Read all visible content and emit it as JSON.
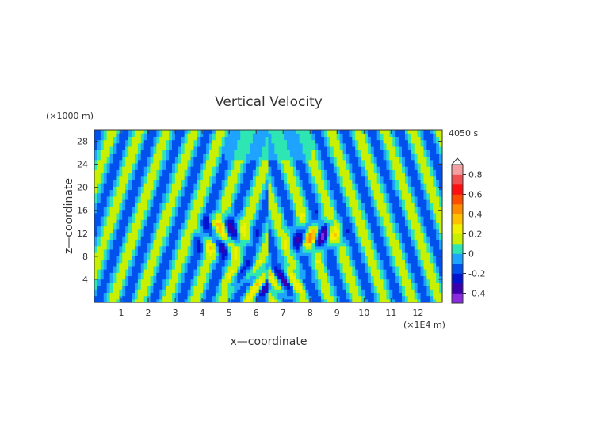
{
  "chart_data": {
    "type": "heatmap",
    "title": "Vertical Velocity",
    "time_label": "4050 s",
    "xlabel": "x—coordinate",
    "ylabel": "z—coordinate",
    "x_unit": "(×1E4 m)",
    "y_unit": "(×1000 m)",
    "xlim": [
      0,
      12.9
    ],
    "ylim": [
      0,
      30
    ],
    "x_ticks": [
      1,
      2,
      3,
      4,
      5,
      6,
      7,
      8,
      9,
      10,
      11,
      12
    ],
    "y_ticks": [
      4,
      8,
      12,
      16,
      20,
      24,
      28
    ],
    "colorbar": {
      "levels": [
        -0.5,
        -0.4,
        -0.3,
        -0.2,
        -0.1,
        0,
        0.1,
        0.2,
        0.3,
        0.4,
        0.5,
        0.6,
        0.7,
        0.8,
        0.9
      ],
      "labels": [
        "-0.4",
        "-0.2",
        "0",
        "0.2",
        "0.4",
        "0.6",
        "0.8"
      ],
      "label_values": [
        -0.4,
        -0.2,
        0,
        0.2,
        0.4,
        0.6,
        0.8
      ],
      "colors": [
        "#8a2be2",
        "#3a00b0",
        "#0014d2",
        "#0050ee",
        "#1ea3ff",
        "#2ee6b4",
        "#c8f000",
        "#f0f000",
        "#ffc000",
        "#ff8c00",
        "#ff4d00",
        "#ff1010",
        "#f05050",
        "#f5a0a0"
      ],
      "extend_top": true
    }
  }
}
